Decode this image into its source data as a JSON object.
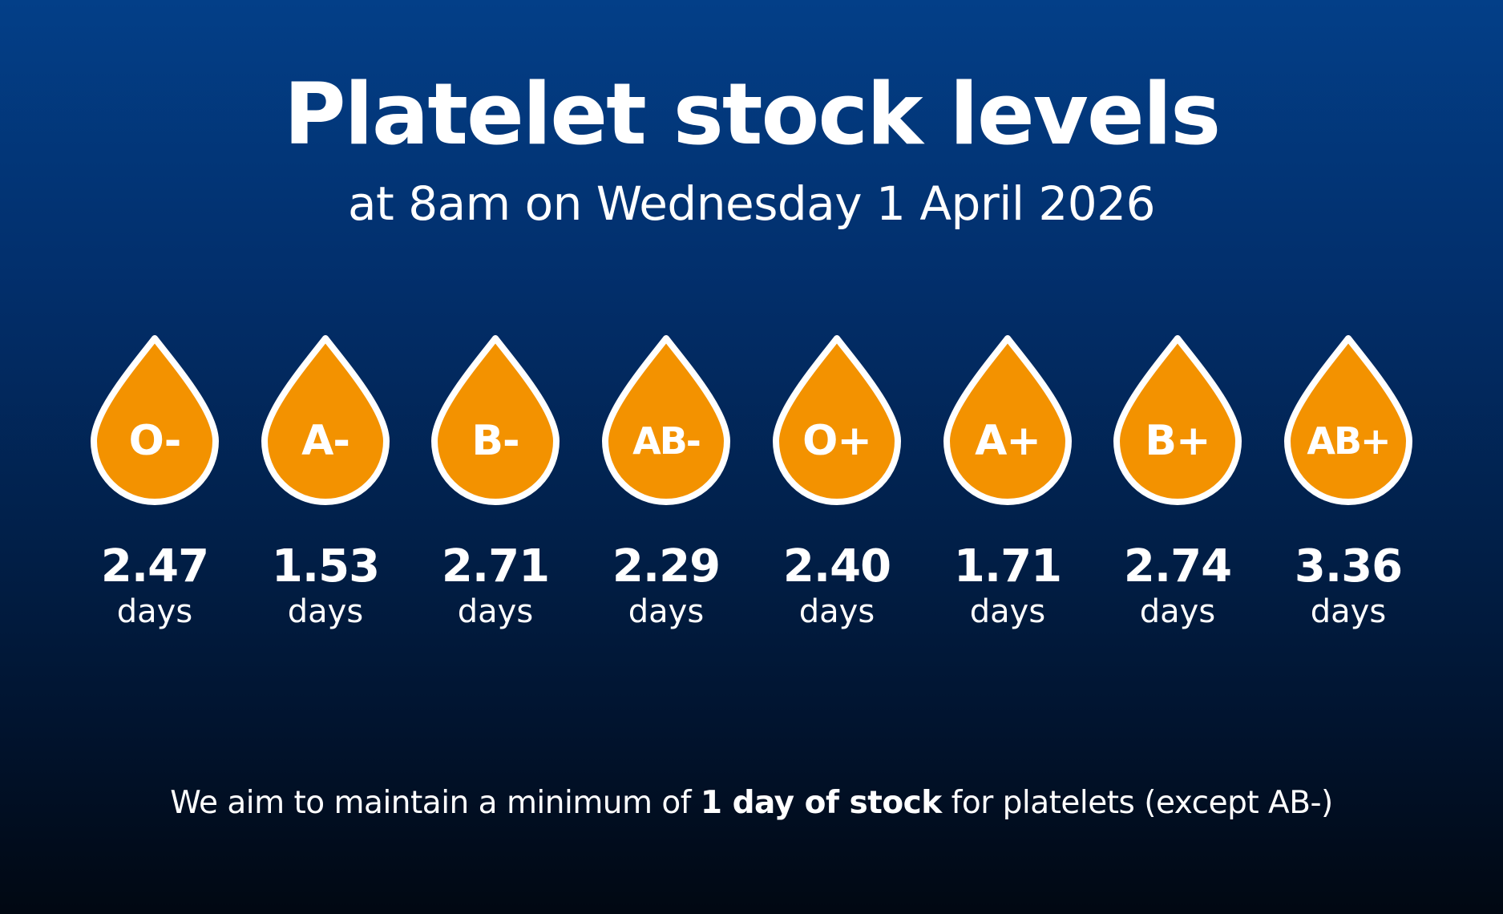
{
  "header": {
    "title": "Platelet stock levels",
    "subtitle": "at 8am on Wednesday 1 April 2026"
  },
  "colors": {
    "background_top": "#033f88",
    "background_bottom": "#010812",
    "drop_fill": "#f39200",
    "drop_outline": "#ffffff",
    "text": "#ffffff"
  },
  "drop_icon": "blood-drop-icon",
  "stock_unit": "days",
  "blood_groups": [
    {
      "group": "O-",
      "days": "2.47"
    },
    {
      "group": "A-",
      "days": "1.53"
    },
    {
      "group": "B-",
      "days": "2.71"
    },
    {
      "group": "AB-",
      "days": "2.29"
    },
    {
      "group": "O+",
      "days": "2.40"
    },
    {
      "group": "A+",
      "days": "1.71"
    },
    {
      "group": "B+",
      "days": "2.74"
    },
    {
      "group": "AB+",
      "days": "3.36"
    }
  ],
  "footer": {
    "prefix": "We aim to maintain a minimum of ",
    "emphasis": "1 day of stock",
    "suffix": " for platelets (except AB-)"
  }
}
